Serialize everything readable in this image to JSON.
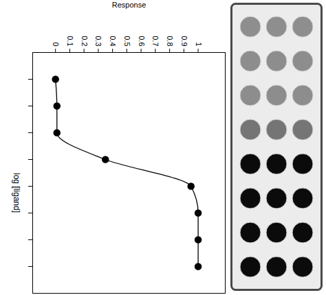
{
  "chart_data": {
    "type": "scatter",
    "xlabel": "log [ligand]",
    "ylabel": "Response",
    "x": [
      1,
      2,
      3,
      4,
      5,
      6,
      7,
      8
    ],
    "values": [
      0,
      0.01,
      0.01,
      0.35,
      0.95,
      1,
      1,
      1
    ],
    "xlim": [
      0,
      9
    ],
    "xticks": [
      1,
      2,
      3,
      4,
      5,
      6,
      7,
      8
    ],
    "ylim": [
      -0.16,
      1.19
    ],
    "yticks": [
      0,
      0.1,
      0.2,
      0.3,
      0.4,
      0.5,
      0.6,
      0.7,
      0.8,
      0.9,
      1
    ],
    "tick_labels": "y",
    "grid": false,
    "color": "#000000",
    "marker": "circle",
    "line_style": "solid"
  }
}
